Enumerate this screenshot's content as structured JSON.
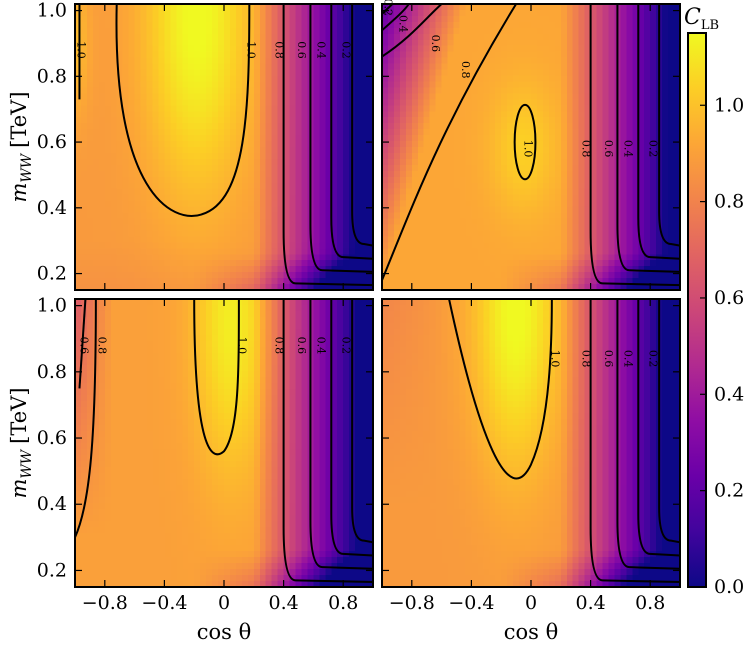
{
  "chart_data": {
    "type": "heatmap",
    "description_panels": "2x2 grid of contour heatmaps",
    "colormap": "plasma",
    "xlim": [
      -1.0,
      1.0
    ],
    "ylim": [
      0.15,
      1.02
    ],
    "xlabel": "cos θ",
    "ylabel": "m_WW [TeV]",
    "ylabel_main": "m",
    "ylabel_sub": "WW",
    "ylabel_unit": "[TeV]",
    "xticks": [
      -0.8,
      -0.4,
      0,
      0.4,
      0.8
    ],
    "xtick_labels": [
      "−0.8",
      "−0.4",
      "0",
      "0.4",
      "0.8"
    ],
    "yticks": [
      0.2,
      0.4,
      0.6,
      0.8,
      1.0
    ],
    "ytick_labels": [
      "0.2",
      "0.4",
      "0.6",
      "0.8",
      "1.0"
    ],
    "colorbar": {
      "title_main": "C",
      "title_sub": "LB",
      "range": [
        0.0,
        1.15
      ],
      "ticks": [
        0.0,
        0.2,
        0.4,
        0.6,
        0.8,
        1.0
      ],
      "tick_labels": [
        "0.0",
        "0.2",
        "0.4",
        "0.6",
        "0.8",
        "1.0"
      ]
    },
    "panels": [
      {
        "position": "top-left",
        "contour_levels": [
          0.2,
          0.4,
          0.6,
          0.8,
          1.0
        ],
        "contour_labels": [
          {
            "text": "1.0",
            "x": -0.96,
            "y": 0.88
          },
          {
            "text": "1.0",
            "x": 0.18,
            "y": 0.88
          },
          {
            "text": "0.8",
            "x": 0.37,
            "y": 0.88
          },
          {
            "text": "0.6",
            "x": 0.52,
            "y": 0.88
          },
          {
            "text": "0.4",
            "x": 0.65,
            "y": 0.88
          },
          {
            "text": "0.2",
            "x": 0.82,
            "y": 0.88
          }
        ]
      },
      {
        "position": "top-right",
        "contour_levels": [
          0.2,
          0.4,
          0.6,
          0.8,
          1.0
        ],
        "contour_labels": [
          {
            "text": "0.2",
            "x": -0.96,
            "y": 1.01
          },
          {
            "text": "0.4",
            "x": -0.86,
            "y": 0.96
          },
          {
            "text": "0.6",
            "x": -0.64,
            "y": 0.9
          },
          {
            "text": "0.8",
            "x": -0.44,
            "y": 0.82
          },
          {
            "text": "1.0",
            "x": -0.02,
            "y": 0.58
          },
          {
            "text": "0.8",
            "x": 0.37,
            "y": 0.58
          },
          {
            "text": "0.6",
            "x": 0.52,
            "y": 0.58
          },
          {
            "text": "0.4",
            "x": 0.65,
            "y": 0.58
          },
          {
            "text": "0.2",
            "x": 0.82,
            "y": 0.58
          }
        ]
      },
      {
        "position": "bottom-left",
        "contour_levels": [
          0.2,
          0.4,
          0.6,
          0.8,
          1.0
        ],
        "contour_labels": [
          {
            "text": "0.6",
            "x": -0.94,
            "y": 0.88
          },
          {
            "text": "0.8",
            "x": -0.82,
            "y": 0.88
          },
          {
            "text": "1.0",
            "x": 0.12,
            "y": 0.88
          },
          {
            "text": "0.8",
            "x": 0.37,
            "y": 0.88
          },
          {
            "text": "0.6",
            "x": 0.52,
            "y": 0.88
          },
          {
            "text": "0.4",
            "x": 0.65,
            "y": 0.88
          },
          {
            "text": "0.2",
            "x": 0.82,
            "y": 0.88
          }
        ]
      },
      {
        "position": "bottom-right",
        "contour_levels": [
          0.2,
          0.4,
          0.6,
          0.8,
          1.0
        ],
        "contour_labels": [
          {
            "text": "1.0",
            "x": 0.16,
            "y": 0.84
          },
          {
            "text": "0.8",
            "x": 0.37,
            "y": 0.84
          },
          {
            "text": "0.6",
            "x": 0.52,
            "y": 0.84
          },
          {
            "text": "0.4",
            "x": 0.65,
            "y": 0.84
          },
          {
            "text": "0.2",
            "x": 0.82,
            "y": 0.84
          }
        ]
      }
    ]
  }
}
